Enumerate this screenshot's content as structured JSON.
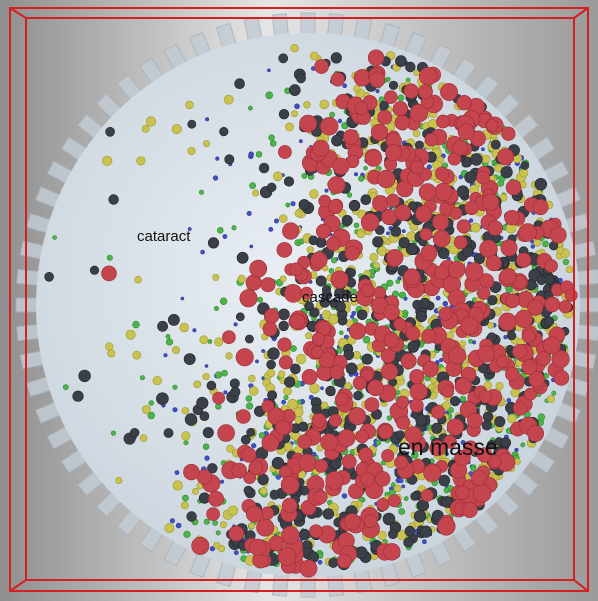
{
  "labels": {
    "cataract": "cataract",
    "cascade": "cascade",
    "en_masse": "en masse"
  }
}
